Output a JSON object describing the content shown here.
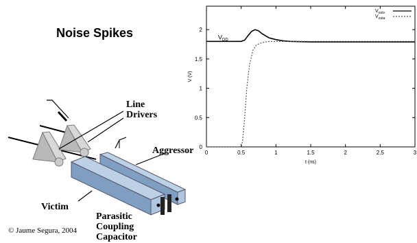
{
  "slide": {
    "title": "Noise Spikes",
    "copyright": "© Jaume Segura, 2004"
  },
  "diagram": {
    "line_drivers_label": [
      "Line",
      "Drivers"
    ],
    "aggressor_label": "Aggressor",
    "victim_label": "Victim",
    "parasitic_label": [
      "Parasitic",
      "Coupling",
      "Capacitor"
    ]
  },
  "chart_data": {
    "type": "line",
    "title": "",
    "xlabel": "t (ns)",
    "ylabel": "V (V)",
    "xlim": [
      0,
      3
    ],
    "ylim": [
      0,
      2.4
    ],
    "x_ticks": [
      "0",
      "0.5",
      "1",
      "1.5",
      "2",
      "2.5",
      "3"
    ],
    "y_ticks": [
      "0",
      "0.5",
      "1",
      "1.5",
      "2"
    ],
    "grid": false,
    "legend_placement": "top-right",
    "annotation": {
      "text": "V",
      "subscript": "DD"
    },
    "series": [
      {
        "name": "V",
        "name_sub": "outv",
        "style": "solid",
        "color": "#000000",
        "points": [
          [
            0,
            1.8
          ],
          [
            0.5,
            1.8
          ],
          [
            0.55,
            1.82
          ],
          [
            0.6,
            1.9
          ],
          [
            0.65,
            1.97
          ],
          [
            0.7,
            2.0
          ],
          [
            0.75,
            1.98
          ],
          [
            0.8,
            1.93
          ],
          [
            0.9,
            1.86
          ],
          [
            1.0,
            1.83
          ],
          [
            1.1,
            1.81
          ],
          [
            1.2,
            1.8
          ],
          [
            1.5,
            1.79
          ],
          [
            2.0,
            1.79
          ],
          [
            3.0,
            1.79
          ]
        ]
      },
      {
        "name": "V",
        "name_sub": "outa",
        "style": "dotted",
        "color": "#555555",
        "points": [
          [
            0,
            0
          ],
          [
            0.5,
            0
          ],
          [
            0.52,
            0.1
          ],
          [
            0.55,
            0.5
          ],
          [
            0.58,
            1.0
          ],
          [
            0.62,
            1.4
          ],
          [
            0.67,
            1.65
          ],
          [
            0.72,
            1.74
          ],
          [
            0.8,
            1.78
          ],
          [
            0.9,
            1.8
          ],
          [
            1.0,
            1.8
          ],
          [
            3.0,
            1.8
          ]
        ]
      }
    ]
  }
}
